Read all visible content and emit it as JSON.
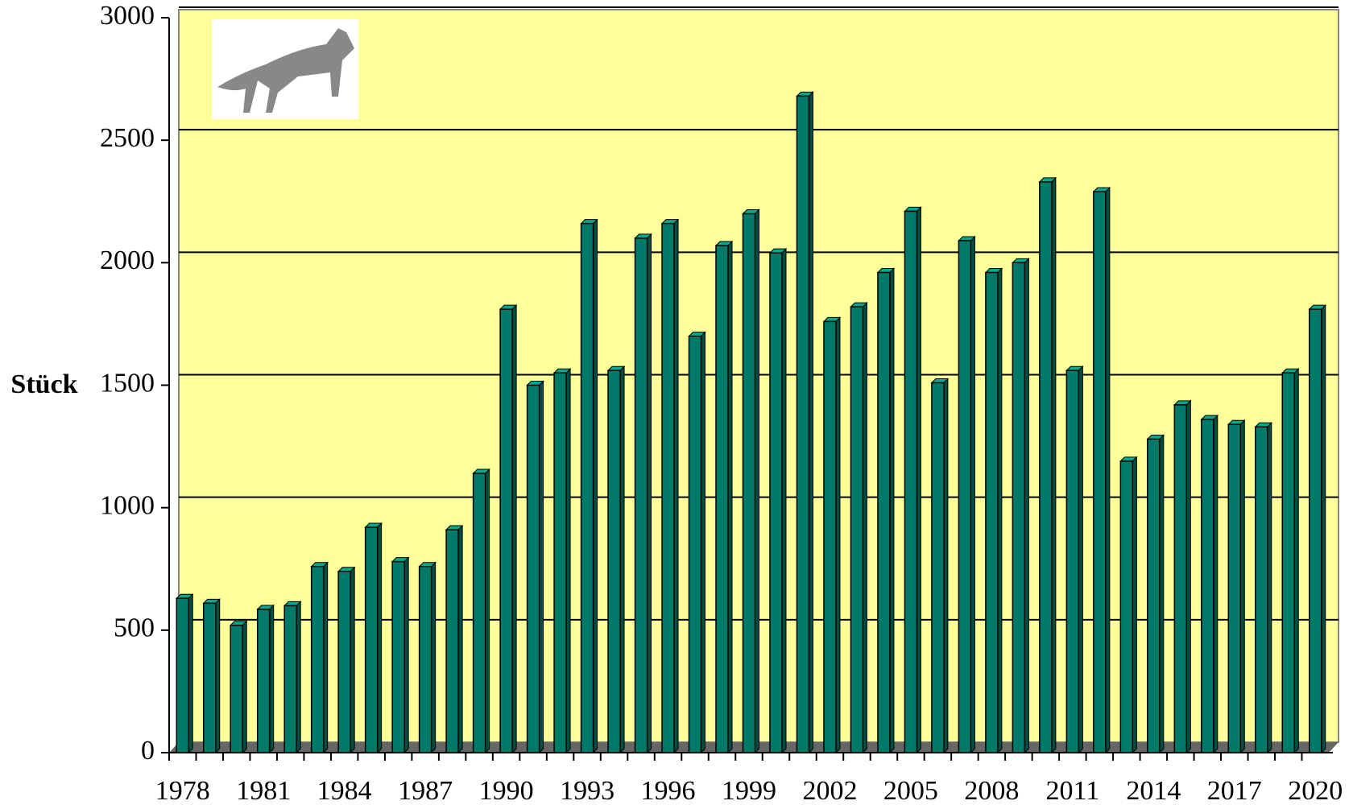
{
  "chart_data": {
    "type": "bar",
    "y_label": "Stück",
    "categories": [
      "1978",
      null,
      null,
      "1981",
      null,
      null,
      "1984",
      null,
      null,
      "1987",
      null,
      null,
      "1990",
      null,
      null,
      "1993",
      null,
      null,
      "1996",
      null,
      null,
      "1999",
      null,
      null,
      "2002",
      null,
      null,
      "2005",
      null,
      null,
      "2008",
      null,
      null,
      "2011",
      null,
      null,
      "2014",
      null,
      null,
      "2017",
      null,
      null,
      "2020"
    ],
    "values": [
      630,
      610,
      520,
      585,
      600,
      760,
      740,
      920,
      780,
      760,
      910,
      1140,
      1810,
      1500,
      1550,
      2160,
      1560,
      2100,
      2160,
      1700,
      2070,
      2200,
      2040,
      2680,
      1760,
      1820,
      1960,
      2210,
      1510,
      2090,
      1960,
      2000,
      2330,
      1560,
      2290,
      1190,
      1280,
      1420,
      1360,
      1340,
      1330,
      1550,
      1810
    ],
    "color": "#007a68",
    "background": "#ffff99",
    "ylim": [
      0,
      3000
    ],
    "yticks": [
      0,
      500,
      1000,
      1500,
      2000,
      2500,
      3000
    ],
    "grid": true
  }
}
